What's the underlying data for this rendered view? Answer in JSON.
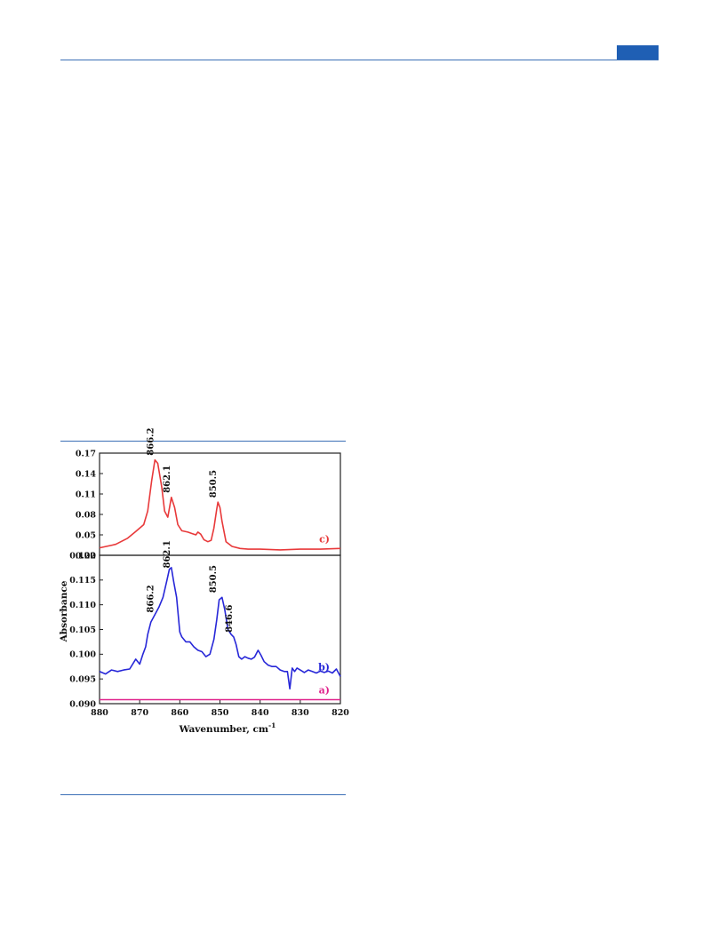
{
  "header": {
    "accent": "#1f5fb4"
  },
  "chart_data": {
    "type": "line",
    "xlabel": "Wavenumber, cm",
    "xlabel_sup": "-1",
    "ylabel": "Absorbance",
    "xlim": [
      880,
      820
    ],
    "x_ticks": [
      "880",
      "870",
      "860",
      "850",
      "840",
      "830",
      "820"
    ],
    "grid": false,
    "panels": [
      {
        "name": "top",
        "ylim": [
          0.02,
          0.17
        ],
        "y_ticks": [
          "0.17",
          "0.14",
          "0.11",
          "0.08",
          "0.05",
          "0.02"
        ],
        "peak_labels": [
          {
            "text": "866.2",
            "x": 866.2,
            "y": 0.16
          },
          {
            "text": "862.1",
            "x": 862.1,
            "y": 0.105
          },
          {
            "text": "850.5",
            "x": 850.5,
            "y": 0.098
          }
        ],
        "series": [
          {
            "label": "c)",
            "color": "#e8393a",
            "x": [
              880,
              876,
              873,
              871,
              869,
              868,
              867,
              866.2,
              865.5,
              864.5,
              863.8,
              863,
              862.1,
              861.3,
              860.5,
              859.5,
              858,
              857,
              856,
              855.5,
              854.8,
              854,
              853,
              852.2,
              851.5,
              850.8,
              850.5,
              850,
              849.5,
              848.5,
              847,
              845,
              843,
              840,
              835,
              830,
              825,
              820
            ],
            "y": [
              0.031,
              0.036,
              0.045,
              0.055,
              0.065,
              0.085,
              0.13,
              0.16,
              0.155,
              0.12,
              0.085,
              0.076,
              0.105,
              0.09,
              0.065,
              0.056,
              0.054,
              0.052,
              0.05,
              0.054,
              0.051,
              0.043,
              0.04,
              0.042,
              0.06,
              0.088,
              0.098,
              0.09,
              0.07,
              0.04,
              0.033,
              0.03,
              0.029,
              0.029,
              0.028,
              0.029,
              0.029,
              0.03
            ]
          }
        ]
      },
      {
        "name": "bottom",
        "ylim": [
          0.09,
          0.12
        ],
        "y_ticks": [
          "0.120",
          "0.115",
          "0.110",
          "0.105",
          "0.100",
          "0.095",
          "0.090"
        ],
        "peak_labels": [
          {
            "text": "866.2",
            "x": 866.2,
            "y": 0.1075
          },
          {
            "text": "862.1",
            "x": 862.1,
            "y": 0.1165
          },
          {
            "text": "850.5",
            "x": 850.5,
            "y": 0.1115
          },
          {
            "text": "846.6",
            "x": 846.6,
            "y": 0.1035
          }
        ],
        "series": [
          {
            "label": "b)",
            "color": "#2727d8",
            "x": [
              880,
              878.5,
              877,
              875.5,
              874,
              872.5,
              871,
              870,
              869.2,
              868.5,
              868,
              867.2,
              866.2,
              865.2,
              864.2,
              863.2,
              862.6,
              862.1,
              861.5,
              860.8,
              860,
              859.5,
              858.5,
              857.5,
              856.5,
              855.5,
              854.5,
              853.5,
              852.5,
              851.5,
              850.8,
              850.2,
              849.5,
              848.8,
              848,
              847.2,
              846.6,
              846,
              845.3,
              844.6,
              843.8,
              843,
              842.2,
              841.4,
              840.5,
              839.8,
              839,
              838,
              837,
              836,
              835,
              834,
              833.2,
              832.6,
              832,
              831.4,
              830.8,
              830,
              829,
              828,
              827,
              826,
              825,
              824,
              823,
              822,
              821,
              820
            ],
            "y": [
              0.0965,
              0.096,
              0.0968,
              0.0965,
              0.0968,
              0.097,
              0.099,
              0.098,
              0.1,
              0.1015,
              0.104,
              0.1065,
              0.108,
              0.1095,
              0.1115,
              0.115,
              0.1172,
              0.1175,
              0.1145,
              0.1115,
              0.1045,
              0.1035,
              0.1025,
              0.1025,
              0.1015,
              0.1008,
              0.1005,
              0.0995,
              0.1,
              0.103,
              0.107,
              0.111,
              0.1115,
              0.109,
              0.105,
              0.104,
              0.1035,
              0.102,
              0.0995,
              0.099,
              0.0995,
              0.0992,
              0.099,
              0.0994,
              0.1008,
              0.0998,
              0.0985,
              0.0978,
              0.0975,
              0.0975,
              0.0968,
              0.0965,
              0.0965,
              0.093,
              0.0972,
              0.0965,
              0.0972,
              0.0968,
              0.0963,
              0.0968,
              0.0965,
              0.0962,
              0.0966,
              0.0963,
              0.0966,
              0.0962,
              0.097,
              0.0955
            ]
          },
          {
            "label": "a)",
            "color": "#e0228c",
            "x": [
              880,
              870,
              860,
              850,
              840,
              830,
              820
            ],
            "y": [
              0.0908,
              0.0908,
              0.0908,
              0.0908,
              0.0908,
              0.0908,
              0.0908
            ]
          }
        ]
      }
    ]
  }
}
